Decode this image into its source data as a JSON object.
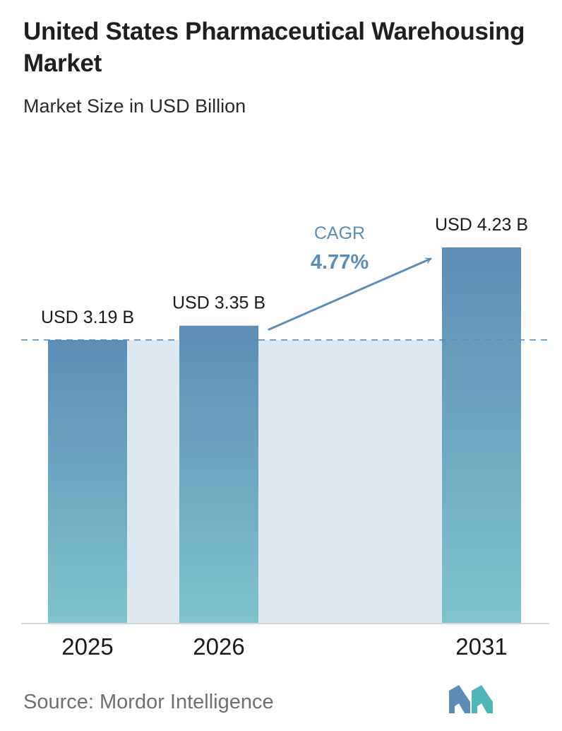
{
  "header": {
    "title": "United States Pharmaceutical Warehousing Market",
    "subtitle": "Market Size in USD Billion"
  },
  "chart_data": {
    "type": "bar",
    "categories": [
      "2025",
      "2026",
      "2031"
    ],
    "values": [
      3.19,
      3.35,
      4.23
    ],
    "value_labels": [
      "USD 3.19 B",
      "USD 3.35 B",
      "USD 4.23 B"
    ],
    "ylim": [
      0,
      4.23
    ],
    "reference_line": 3.19,
    "cagr": {
      "label": "CAGR",
      "value": "4.77%"
    },
    "xlabel": "",
    "ylabel": "",
    "grid": false,
    "colors": {
      "bar_top": "#5b8db8",
      "bar_bottom": "#7ec4c9",
      "band": "#dde8f0",
      "axis": "#cfd6dc",
      "dashed_line": "#5b8db8",
      "cagr": "#5b8db8"
    }
  },
  "footer": {
    "source": "Source:  Mordor Intelligence",
    "logo_colors": [
      "#5b8db8",
      "#4fb6b8"
    ]
  }
}
